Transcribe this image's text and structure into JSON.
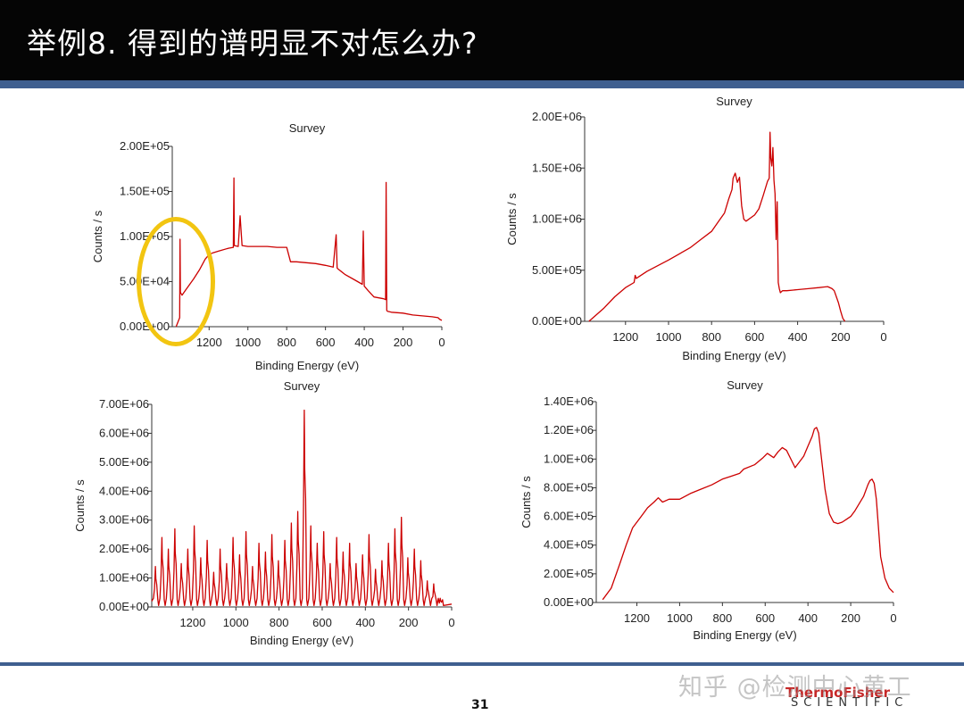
{
  "slide": {
    "title": "举例8. 得到的谱明显不对怎么办?",
    "page_number": "31",
    "brand": "ThermoFisher",
    "brand_sub": "SCIENTIFIC",
    "watermark": "知乎 @检测中心黄工"
  },
  "colors": {
    "header_bg": "#050505",
    "band": "#3f5f8f",
    "series": "#cc0000",
    "highlight": "#f2c511"
  },
  "chart_data": [
    {
      "type": "line",
      "title": "Survey",
      "xlabel": "Binding Energy (eV)",
      "ylabel": "Counts / s",
      "xlim": [
        1390,
        0
      ],
      "ylim": [
        0,
        200000
      ],
      "xticks": [
        1200,
        1000,
        800,
        600,
        400,
        200,
        0
      ],
      "yticks": [
        "0.00E+00",
        "5.00E+04",
        "1.00E+05",
        "1.50E+05",
        "2.00E+05"
      ],
      "grid": false,
      "annotation": "circled low-energy-loss region near 1300 eV",
      "x": [
        1370,
        1352,
        1350,
        1348,
        1340,
        1320,
        1300,
        1280,
        1250,
        1220,
        1200,
        1180,
        1150,
        1100,
        1075,
        1072,
        1070,
        1050,
        1040,
        1030,
        1000,
        950,
        900,
        850,
        800,
        780,
        750,
        700,
        650,
        600,
        560,
        545,
        540,
        535,
        500,
        450,
        410,
        405,
        400,
        380,
        350,
        300,
        290,
        287,
        284,
        280,
        260,
        200,
        150,
        100,
        50,
        20,
        10,
        0
      ],
      "y": [
        0,
        10000,
        97000,
        38000,
        35000,
        41000,
        47000,
        53000,
        63000,
        75000,
        80000,
        82000,
        84000,
        87000,
        88000,
        165000,
        90000,
        89000,
        123000,
        90000,
        89000,
        89000,
        89000,
        88000,
        88000,
        72000,
        72000,
        71000,
        70000,
        68000,
        66000,
        102000,
        65000,
        64000,
        58000,
        52000,
        47000,
        106000,
        45000,
        40000,
        33000,
        31000,
        30000,
        160000,
        18000,
        17000,
        16000,
        15000,
        13000,
        12000,
        11000,
        10000,
        8000,
        7000
      ]
    },
    {
      "type": "line",
      "title": "Survey",
      "xlabel": "Binding Energy (eV)",
      "ylabel": "Counts / s",
      "xlim": [
        1390,
        0
      ],
      "ylim": [
        0,
        2000000
      ],
      "xticks": [
        1200,
        1000,
        800,
        600,
        400,
        200,
        0
      ],
      "yticks": [
        "0.00E+00",
        "5.00E+05",
        "1.00E+06",
        "1.50E+06",
        "2.00E+06"
      ],
      "grid": false,
      "x": [
        1370,
        1300,
        1250,
        1200,
        1160,
        1155,
        1150,
        1100,
        1000,
        900,
        850,
        800,
        760,
        740,
        720,
        705,
        700,
        690,
        680,
        670,
        660,
        650,
        640,
        600,
        580,
        560,
        540,
        532,
        528,
        525,
        520,
        515,
        510,
        505,
        500,
        495,
        490,
        485,
        480,
        470,
        450,
        400,
        350,
        300,
        280,
        260,
        240,
        230,
        220,
        210,
        200,
        190,
        180
      ],
      "y": [
        0,
        130000,
        240000,
        330000,
        380000,
        450000,
        420000,
        490000,
        600000,
        720000,
        800000,
        880000,
        1000000,
        1060000,
        1200000,
        1290000,
        1400000,
        1450000,
        1360000,
        1410000,
        1130000,
        1000000,
        980000,
        1040000,
        1100000,
        1230000,
        1370000,
        1400000,
        1850000,
        1600000,
        1520000,
        1700000,
        1380000,
        1250000,
        800000,
        1170000,
        380000,
        320000,
        280000,
        300000,
        300000,
        310000,
        320000,
        330000,
        335000,
        340000,
        320000,
        300000,
        240000,
        180000,
        100000,
        30000,
        0
      ]
    },
    {
      "type": "line",
      "title": "Survey",
      "xlabel": "Binding Energy (eV)",
      "ylabel": "Counts / s",
      "xlim": [
        1390,
        0
      ],
      "ylim": [
        0,
        7000000
      ],
      "xticks": [
        1200,
        1000,
        800,
        600,
        400,
        200,
        0
      ],
      "yticks": [
        "0.00E+00",
        "1.00E+06",
        "2.00E+06",
        "3.00E+06",
        "4.00E+06",
        "5.00E+06",
        "6.00E+06",
        "7.00E+06"
      ],
      "grid": false,
      "peak_spacing_eV": 30,
      "peak_heights": [
        1400000,
        2400000,
        2000000,
        2700000,
        1500000,
        2000000,
        2800000,
        1700000,
        2300000,
        1200000,
        2000000,
        1500000,
        2400000,
        1800000,
        2600000,
        1400000,
        2200000,
        1900000,
        2500000,
        1600000,
        2300000,
        2900000,
        3300000,
        6800000,
        2800000,
        2200000,
        2600000,
        1500000,
        2400000,
        1900000,
        2200000,
        1500000,
        1800000,
        2500000,
        1300000,
        1600000,
        2200000,
        2700000,
        3100000,
        1700000,
        2000000,
        1600000,
        900000,
        800000,
        300000
      ]
    },
    {
      "type": "line",
      "title": "Survey",
      "xlabel": "Binding Energy (eV)",
      "ylabel": "Counts / s",
      "xlim": [
        1390,
        0
      ],
      "ylim": [
        0,
        1400000
      ],
      "xticks": [
        1200,
        1000,
        800,
        600,
        400,
        200,
        0
      ],
      "yticks": [
        "0.00E+00",
        "2.00E+05",
        "4.00E+05",
        "6.00E+05",
        "8.00E+05",
        "1.00E+06",
        "1.20E+06",
        "1.40E+06"
      ],
      "grid": false,
      "x": [
        1360,
        1320,
        1280,
        1250,
        1220,
        1180,
        1150,
        1120,
        1100,
        1080,
        1050,
        1000,
        950,
        900,
        850,
        800,
        760,
        720,
        700,
        650,
        610,
        590,
        560,
        540,
        520,
        500,
        460,
        420,
        400,
        380,
        370,
        360,
        350,
        340,
        320,
        300,
        280,
        260,
        240,
        220,
        200,
        180,
        160,
        140,
        120,
        110,
        100,
        90,
        80,
        60,
        40,
        20,
        0
      ],
      "y": [
        20000,
        100000,
        270000,
        400000,
        520000,
        600000,
        660000,
        700000,
        730000,
        700000,
        720000,
        720000,
        760000,
        790000,
        820000,
        860000,
        880000,
        900000,
        930000,
        960000,
        1010000,
        1040000,
        1010000,
        1050000,
        1080000,
        1060000,
        940000,
        1020000,
        1090000,
        1160000,
        1210000,
        1220000,
        1180000,
        1050000,
        790000,
        620000,
        560000,
        550000,
        560000,
        580000,
        600000,
        640000,
        690000,
        740000,
        820000,
        850000,
        860000,
        830000,
        720000,
        320000,
        170000,
        100000,
        70000
      ]
    }
  ]
}
